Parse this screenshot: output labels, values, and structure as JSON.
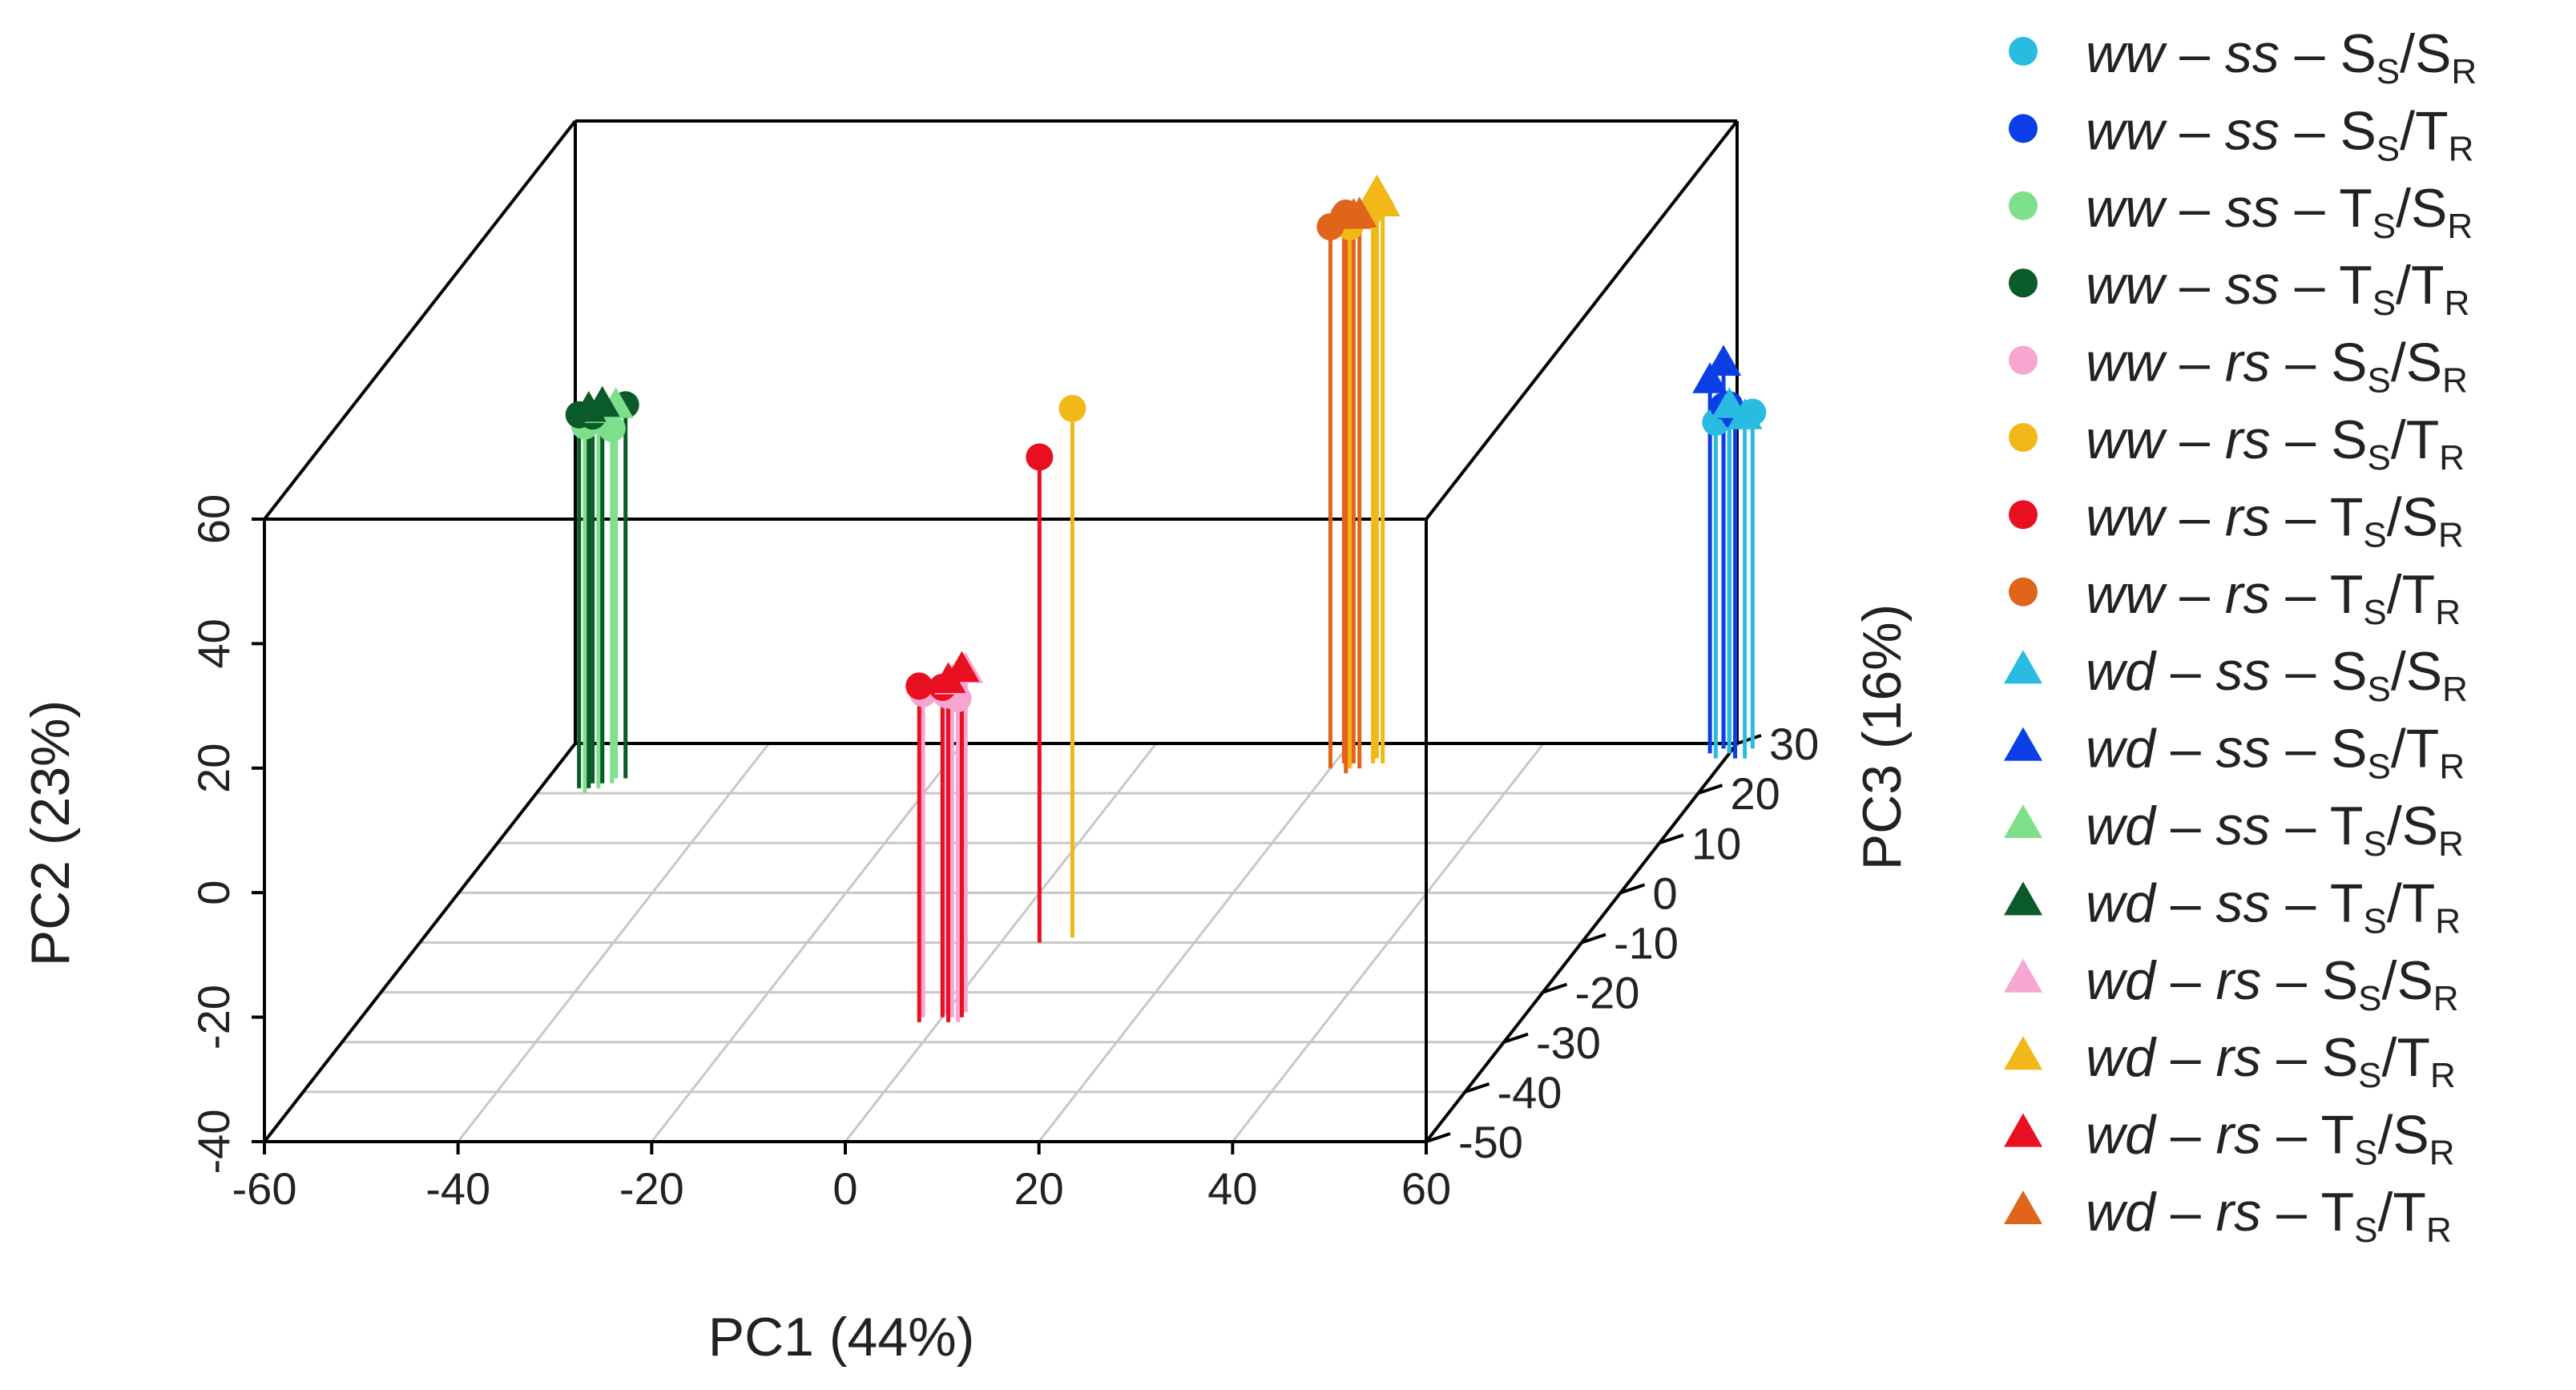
{
  "chart_data": {
    "type": "scatter",
    "projection": "3d",
    "xlabel": "PC1 (44%)",
    "ylabel": "PC2 (23%)",
    "zlabel": "PC3 (16%)",
    "xlim": [
      -60,
      60
    ],
    "ylim": [
      -40,
      60
    ],
    "zlim": [
      -50,
      30
    ],
    "x_ticks": [
      "-60",
      "-40",
      "-20",
      "0",
      "20",
      "40",
      "60"
    ],
    "y_ticks": [
      "-40",
      "-20",
      "0",
      "20",
      "40",
      "60"
    ],
    "z_ticks": [
      "-50",
      "-40",
      "-30",
      "-20",
      "-10",
      "0",
      "10",
      "20",
      "30"
    ],
    "x_tick_values": [
      -60,
      -40,
      -20,
      0,
      20,
      40,
      60
    ],
    "y_tick_values": [
      -40,
      -20,
      0,
      20,
      40,
      60
    ],
    "z_tick_values": [
      -50,
      -40,
      -30,
      -20,
      -10,
      0,
      10,
      20,
      30
    ],
    "grid": true,
    "legend_position": "right",
    "series": [
      {
        "water": "ww",
        "treat": "ss",
        "s1": "S",
        "s2": "S",
        "marker": "circle",
        "color": "#29BCE0",
        "points": [
          [
            59,
            14,
            27
          ],
          [
            60,
            15,
            28
          ],
          [
            62,
            14,
            29
          ]
        ]
      },
      {
        "water": "ww",
        "treat": "ss",
        "s1": "S",
        "s2": "T",
        "marker": "circle",
        "color": "#0A3FE6",
        "points": [
          [
            60,
            16,
            28
          ],
          [
            61,
            15,
            27
          ],
          [
            59,
            15,
            29
          ]
        ]
      },
      {
        "water": "ww",
        "treat": "ss",
        "s1": "T",
        "s2": "S",
        "marker": "circle",
        "color": "#7FE08C",
        "points": [
          [
            -55,
            19,
            20
          ],
          [
            -53,
            17,
            22
          ],
          [
            -54,
            20,
            21
          ]
        ]
      },
      {
        "water": "ww",
        "treat": "ss",
        "s1": "T",
        "s2": "T",
        "marker": "circle",
        "color": "#0A5A2A",
        "points": [
          [
            -56,
            20,
            21
          ],
          [
            -52,
            20,
            23
          ],
          [
            -55,
            19,
            22
          ]
        ]
      },
      {
        "water": "ww",
        "treat": "rs",
        "s1": "S",
        "s2": "S",
        "marker": "circle",
        "color": "#F7A6D2",
        "points": [
          [
            -2,
            12,
            -25
          ],
          [
            0,
            11,
            -24
          ],
          [
            2,
            12,
            -26
          ]
        ]
      },
      {
        "water": "ww",
        "treat": "rs",
        "s1": "S",
        "s2": "T",
        "marker": "circle",
        "color": "#F2B817",
        "points": [
          [
            7,
            45,
            -9
          ],
          [
            22,
            47,
            25
          ],
          [
            24,
            49,
            26
          ]
        ]
      },
      {
        "water": "ww",
        "treat": "rs",
        "s1": "T",
        "s2": "S",
        "marker": "circle",
        "color": "#E81020",
        "points": [
          [
            4,
            38,
            -10
          ],
          [
            -2,
            14,
            -26
          ],
          [
            0,
            13,
            -25
          ]
        ]
      },
      {
        "water": "ww",
        "treat": "rs",
        "s1": "T",
        "s2": "T",
        "marker": "circle",
        "color": "#E0641A",
        "points": [
          [
            20,
            47,
            25
          ],
          [
            22,
            50,
            24
          ],
          [
            21,
            48,
            26
          ]
        ]
      },
      {
        "water": "wd",
        "treat": "ss",
        "s1": "S",
        "s2": "S",
        "marker": "triangle",
        "color": "#29BCE0",
        "points": [
          [
            60,
            16,
            28
          ],
          [
            62,
            15,
            27
          ]
        ]
      },
      {
        "water": "wd",
        "treat": "ss",
        "s1": "S",
        "s2": "T",
        "marker": "triangle",
        "color": "#0A3FE6",
        "points": [
          [
            58,
            20,
            28
          ],
          [
            59,
            22,
            29
          ]
        ]
      },
      {
        "water": "wd",
        "treat": "ss",
        "s1": "T",
        "s2": "S",
        "marker": "triangle",
        "color": "#7FE08C",
        "points": [
          [
            -54,
            20,
            22
          ],
          [
            -53,
            20,
            23
          ]
        ]
      },
      {
        "water": "wd",
        "treat": "ss",
        "s1": "T",
        "s2": "T",
        "marker": "triangle",
        "color": "#0A5A2A",
        "points": [
          [
            -55,
            21,
            21
          ],
          [
            -54,
            21,
            22
          ]
        ]
      },
      {
        "water": "wd",
        "treat": "rs",
        "s1": "S",
        "s2": "S",
        "marker": "triangle",
        "color": "#F7A6D2",
        "points": [
          [
            1,
            14,
            -25
          ],
          [
            2,
            15,
            -24
          ]
        ]
      },
      {
        "water": "wd",
        "treat": "rs",
        "s1": "S",
        "s2": "T",
        "marker": "triangle",
        "color": "#F2B817",
        "points": [
          [
            25,
            50,
            26
          ],
          [
            24,
            51,
            27
          ]
        ]
      },
      {
        "water": "wd",
        "treat": "rs",
        "s1": "T",
        "s2": "S",
        "marker": "triangle",
        "color": "#E81020",
        "points": [
          [
            1,
            15,
            -26
          ],
          [
            2,
            16,
            -25
          ]
        ]
      },
      {
        "water": "wd",
        "treat": "rs",
        "s1": "T",
        "s2": "T",
        "marker": "triangle",
        "color": "#E0641A",
        "points": [
          [
            23,
            49,
            25
          ],
          [
            22,
            48,
            26
          ]
        ]
      }
    ]
  }
}
